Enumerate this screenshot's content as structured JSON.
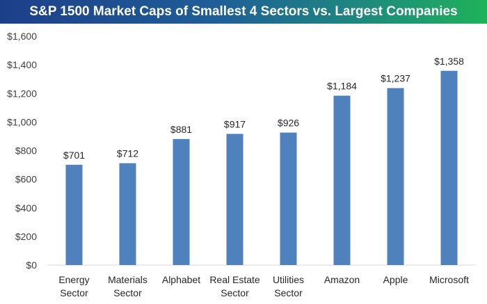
{
  "chart_data": {
    "type": "bar",
    "title": "S&P 1500 Market Caps of Smallest 4 Sectors vs. Largest Companies",
    "categories": [
      [
        "Energy",
        "Sector"
      ],
      [
        "Materials",
        "Sector"
      ],
      [
        "Alphabet"
      ],
      [
        "Real Estate",
        "Sector"
      ],
      [
        "Utilities",
        "Sector"
      ],
      [
        "Amazon"
      ],
      [
        "Apple"
      ],
      [
        "Microsoft"
      ]
    ],
    "values": [
      701,
      712,
      881,
      917,
      926,
      1184,
      1237,
      1358
    ],
    "data_labels": [
      "$701",
      "$712",
      "$881",
      "$917",
      "$926",
      "$1,184",
      "$1,237",
      "$1,358"
    ],
    "y_ticks": [
      0,
      200,
      400,
      600,
      800,
      1000,
      1200,
      1400,
      1600
    ],
    "y_tick_labels": [
      "$0",
      "$200",
      "$400",
      "$600",
      "$800",
      "$1,000",
      "$1,200",
      "$1,400",
      "$1,600"
    ],
    "ylim": [
      0,
      1600
    ],
    "bar_color": "#4f81bd",
    "grid": false
  }
}
